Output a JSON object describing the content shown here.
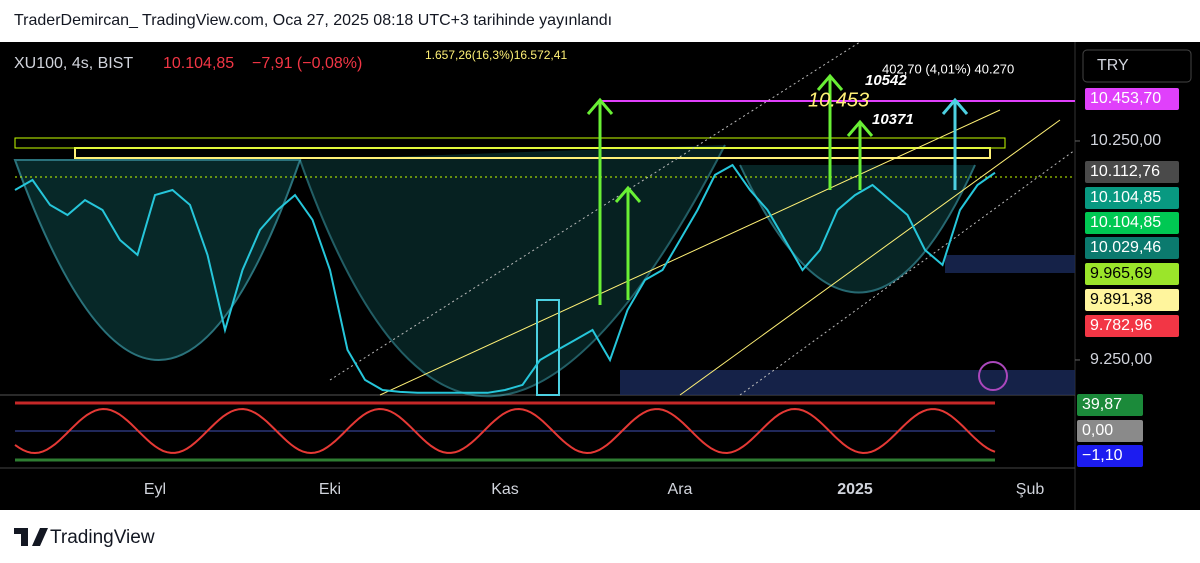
{
  "header": {
    "text": "TraderDemircan_ TradingView.com, Oca 27, 2025 08:18 UTC+3 tarihinde yayınlandı"
  },
  "symbol": {
    "name": "XU100, 4s, BIST",
    "price": "10.104,85",
    "change": "−7,91 (−0,08%)"
  },
  "currency_button": "TRY",
  "annotations": {
    "level": "10.453",
    "high": "10542",
    "mid": "10371",
    "measure": "402,70 (4,01%) 40.270",
    "overlap": "1.657,26(16,3%)16.572,41"
  },
  "price_tags": [
    {
      "label": "10.453,70",
      "color": "#e040fb"
    },
    {
      "label": "10.112,76",
      "color": "#4a4a4a"
    },
    {
      "label": "10.104,85",
      "color": "#089981"
    },
    {
      "label": "10.104,85",
      "color": "#00c853"
    },
    {
      "label": "10.029,46",
      "color": "#0b7a6e"
    },
    {
      "label": "9.965,69",
      "color": "#9be52a"
    },
    {
      "label": "9.891,38",
      "color": "#fff59d"
    },
    {
      "label": "9.782,96",
      "color": "#f23645"
    }
  ],
  "indicator_tags": [
    {
      "label": "39,87",
      "color": "#1b8a3a"
    },
    {
      "label": "0,00",
      "color": "#8a8a8a"
    },
    {
      "label": "−1,10",
      "color": "#1c1cf0"
    }
  ],
  "footer": {
    "brand": "TradingView"
  },
  "chart_data": {
    "type": "line",
    "color": "#26c6da",
    "categories": [
      null,
      null,
      null,
      null,
      null,
      null,
      null,
      null,
      "Eyl",
      null,
      null,
      null,
      null,
      null,
      null,
      null,
      null,
      null,
      "Eki",
      null,
      null,
      null,
      null,
      null,
      null,
      null,
      null,
      null,
      "Kas",
      null,
      null,
      null,
      null,
      null,
      null,
      null,
      null,
      null,
      "Ara",
      null,
      null,
      null,
      null,
      null,
      null,
      null,
      null,
      null,
      "2025",
      null,
      null,
      null,
      null,
      null,
      null,
      null,
      null,
      null,
      "Şub",
      null
    ],
    "values": [
      10026,
      10072,
      9958,
      9912,
      9980,
      9935,
      9798,
      9730,
      10003,
      10026,
      9958,
      9730,
      9387,
      9661,
      9844,
      9935,
      10003,
      9890,
      9661,
      9296,
      9159,
      9113,
      9104,
      9100,
      9100,
      9100,
      9100,
      9100,
      9113,
      9136,
      9250,
      9296,
      9341,
      9387,
      9250,
      9478,
      9615,
      9661,
      9798,
      9935,
      10095,
      10140,
      10026,
      9935,
      9798,
      9661,
      9752,
      9935,
      10003,
      10049,
      9980,
      9912,
      9752,
      9684,
      9935,
      10049,
      10105,
      null,
      null,
      null
    ],
    "ylim": [
      9090,
      10702
    ],
    "yticks": [
      {
        "value": 9250,
        "label": "9.250,00"
      },
      {
        "value": 10250,
        "label": "10.250,00"
      }
    ]
  }
}
